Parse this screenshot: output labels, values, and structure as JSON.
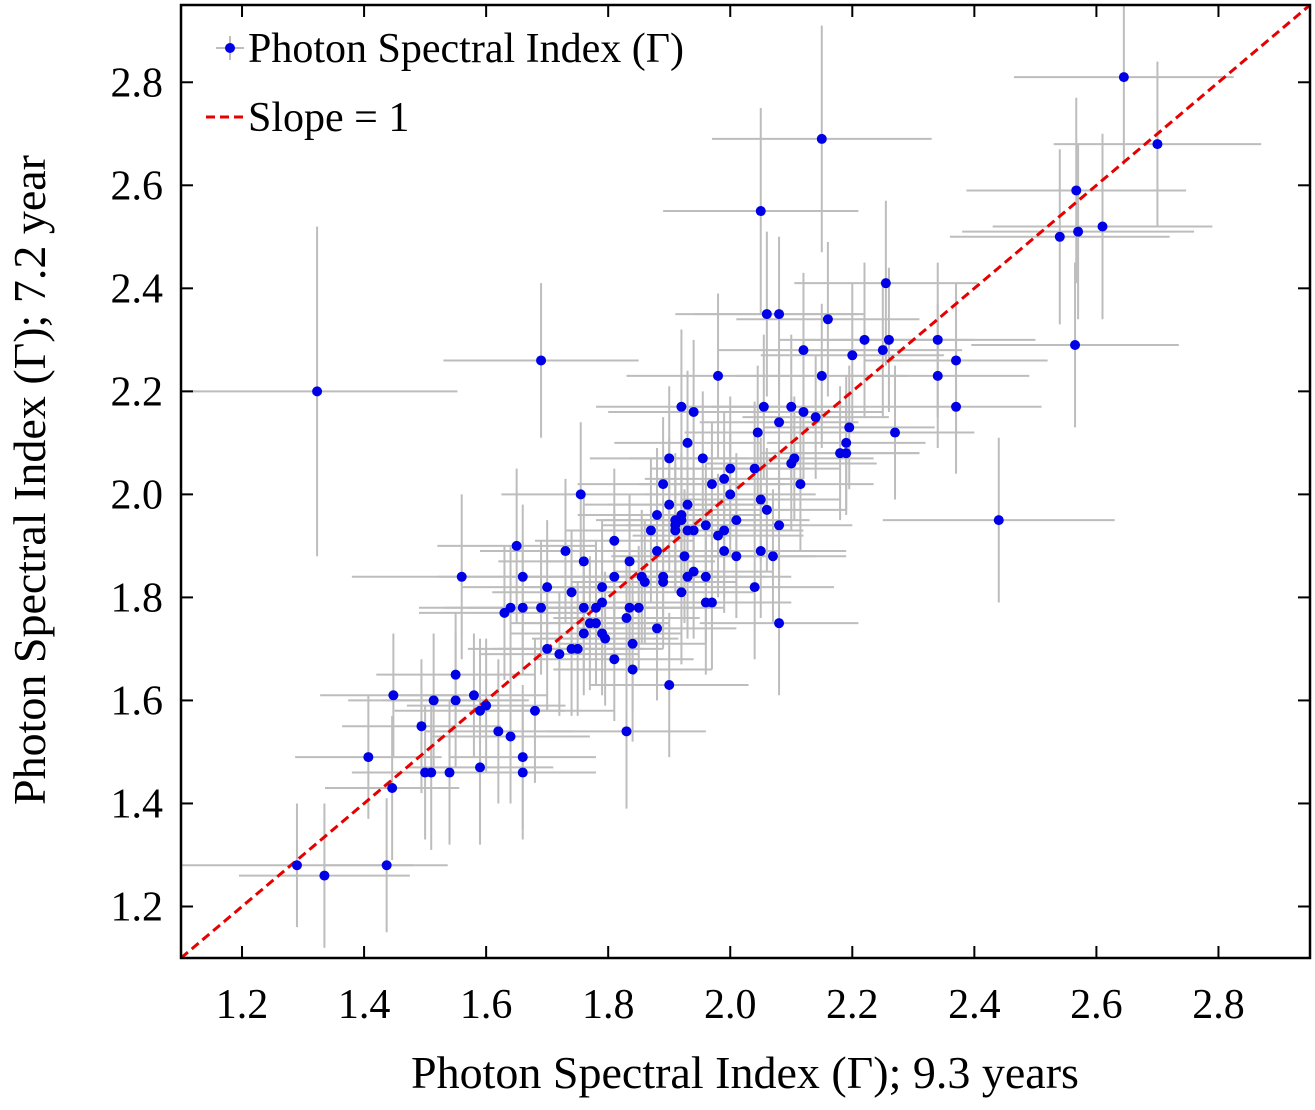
{
  "chart_data": {
    "type": "scatter",
    "xlabel": "Photon Spectral Index (Γ); 9.3 years",
    "ylabel": "Photon Spectral Index (Γ); 7.2 year",
    "xlim": [
      1.1,
      2.95
    ],
    "ylim": [
      1.1,
      2.95
    ],
    "xticks": [
      "1.2",
      "1.4",
      "1.6",
      "1.8",
      "2.0",
      "2.2",
      "2.4",
      "2.6",
      "2.8"
    ],
    "yticks": [
      "1.2",
      "1.4",
      "1.6",
      "1.8",
      "2.0",
      "2.2",
      "2.4",
      "2.6",
      "2.8"
    ],
    "grid": false,
    "legend_position": "top-left",
    "colors": {
      "points": "#0000e6",
      "errorbars": "#bdbdbd",
      "slope_line": "#e60000"
    },
    "series": [
      {
        "name": "Photon Spectral Index (Γ)",
        "type": "scatter-errorbar",
        "point_format": [
          "x",
          "y",
          "xerr",
          "yerr"
        ],
        "points": [
          [
            1.29,
            1.28,
            0.19,
            0.12
          ],
          [
            1.335,
            1.26,
            0.14,
            0.14
          ],
          [
            1.437,
            1.28,
            0.1,
            0.13
          ],
          [
            1.323,
            2.2,
            0.23,
            0.32
          ],
          [
            1.407,
            1.49,
            0.12,
            0.12
          ],
          [
            1.446,
            1.43,
            0.11,
            0.14
          ],
          [
            1.448,
            1.61,
            0.12,
            0.12
          ],
          [
            1.494,
            1.55,
            0.13,
            0.13
          ],
          [
            1.5,
            1.46,
            0.12,
            0.13
          ],
          [
            1.51,
            1.46,
            0.12,
            0.15
          ],
          [
            1.514,
            1.6,
            0.14,
            0.13
          ],
          [
            1.54,
            1.46,
            0.13,
            0.14
          ],
          [
            1.55,
            1.65,
            0.13,
            0.12
          ],
          [
            1.55,
            1.6,
            0.12,
            0.13
          ],
          [
            1.56,
            1.84,
            0.18,
            0.16
          ],
          [
            1.58,
            1.61,
            0.12,
            0.12
          ],
          [
            1.59,
            1.58,
            0.14,
            0.14
          ],
          [
            1.59,
            1.47,
            0.12,
            0.15
          ],
          [
            1.6,
            1.59,
            0.13,
            0.13
          ],
          [
            1.62,
            1.54,
            0.12,
            0.14
          ],
          [
            1.64,
            1.53,
            0.13,
            0.13
          ],
          [
            1.63,
            1.77,
            0.14,
            0.13
          ],
          [
            1.64,
            1.78,
            0.15,
            0.12
          ],
          [
            1.65,
            1.9,
            0.13,
            0.15
          ],
          [
            1.66,
            1.49,
            0.12,
            0.14
          ],
          [
            1.66,
            1.78,
            0.13,
            0.13
          ],
          [
            1.66,
            1.84,
            0.14,
            0.14
          ],
          [
            1.66,
            1.46,
            0.12,
            0.13
          ],
          [
            1.68,
            1.58,
            0.13,
            0.14
          ],
          [
            1.69,
            1.78,
            0.12,
            0.13
          ],
          [
            1.69,
            2.26,
            0.16,
            0.15
          ],
          [
            1.7,
            1.7,
            0.13,
            0.12
          ],
          [
            1.7,
            1.82,
            0.14,
            0.13
          ],
          [
            1.72,
            1.69,
            0.13,
            0.12
          ],
          [
            1.73,
            1.89,
            0.14,
            0.14
          ],
          [
            1.74,
            1.7,
            0.12,
            0.13
          ],
          [
            1.74,
            1.81,
            0.13,
            0.12
          ],
          [
            1.75,
            1.7,
            0.14,
            0.13
          ],
          [
            1.755,
            2.0,
            0.13,
            0.14
          ],
          [
            1.76,
            1.87,
            0.14,
            0.13
          ],
          [
            1.76,
            1.78,
            0.13,
            0.12
          ],
          [
            1.76,
            1.73,
            0.12,
            0.12
          ],
          [
            1.77,
            1.75,
            0.13,
            0.13
          ],
          [
            1.78,
            1.75,
            0.12,
            0.12
          ],
          [
            1.78,
            1.78,
            0.14,
            0.13
          ],
          [
            1.79,
            1.79,
            0.13,
            0.12
          ],
          [
            1.79,
            1.82,
            0.12,
            0.13
          ],
          [
            1.79,
            1.73,
            0.13,
            0.12
          ],
          [
            1.795,
            1.72,
            0.12,
            0.13
          ],
          [
            1.81,
            1.68,
            0.13,
            0.12
          ],
          [
            1.81,
            1.84,
            0.14,
            0.13
          ],
          [
            1.81,
            1.91,
            0.13,
            0.14
          ],
          [
            1.83,
            1.76,
            0.12,
            0.12
          ],
          [
            1.83,
            1.54,
            0.13,
            0.15
          ],
          [
            1.835,
            1.87,
            0.14,
            0.13
          ],
          [
            1.835,
            1.78,
            0.13,
            0.12
          ],
          [
            1.84,
            1.71,
            0.12,
            0.13
          ],
          [
            1.84,
            1.66,
            0.13,
            0.14
          ],
          [
            1.85,
            1.78,
            0.14,
            0.12
          ],
          [
            1.855,
            1.84,
            0.13,
            0.13
          ],
          [
            1.86,
            1.83,
            0.12,
            0.12
          ],
          [
            1.87,
            1.93,
            0.14,
            0.14
          ],
          [
            1.88,
            1.96,
            0.13,
            0.13
          ],
          [
            1.88,
            1.89,
            0.12,
            0.12
          ],
          [
            1.88,
            1.74,
            0.13,
            0.14
          ],
          [
            1.89,
            2.02,
            0.14,
            0.13
          ],
          [
            1.89,
            1.84,
            0.13,
            0.12
          ],
          [
            1.89,
            1.83,
            0.12,
            0.13
          ],
          [
            1.9,
            1.63,
            0.13,
            0.14
          ],
          [
            1.9,
            1.98,
            0.14,
            0.13
          ],
          [
            1.9,
            2.07,
            0.13,
            0.14
          ],
          [
            1.91,
            1.94,
            0.12,
            0.12
          ],
          [
            1.91,
            1.95,
            0.13,
            0.13
          ],
          [
            1.91,
            1.93,
            0.14,
            0.12
          ],
          [
            1.92,
            1.95,
            0.13,
            0.13
          ],
          [
            1.92,
            1.81,
            0.12,
            0.14
          ],
          [
            1.92,
            2.17,
            0.14,
            0.15
          ],
          [
            1.92,
            1.96,
            0.13,
            0.12
          ],
          [
            1.925,
            1.88,
            0.12,
            0.13
          ],
          [
            1.93,
            1.98,
            0.13,
            0.12
          ],
          [
            1.93,
            1.93,
            0.14,
            0.13
          ],
          [
            1.93,
            1.84,
            0.13,
            0.12
          ],
          [
            1.93,
            2.1,
            0.12,
            0.14
          ],
          [
            1.94,
            1.85,
            0.13,
            0.13
          ],
          [
            1.94,
            2.16,
            0.14,
            0.14
          ],
          [
            1.94,
            1.93,
            0.13,
            0.12
          ],
          [
            1.955,
            2.07,
            0.12,
            0.13
          ],
          [
            1.96,
            1.94,
            0.13,
            0.12
          ],
          [
            1.96,
            1.84,
            0.14,
            0.13
          ],
          [
            1.96,
            1.79,
            0.13,
            0.14
          ],
          [
            1.97,
            2.02,
            0.12,
            0.12
          ],
          [
            1.97,
            1.79,
            0.13,
            0.13
          ],
          [
            1.98,
            1.92,
            0.14,
            0.12
          ],
          [
            1.98,
            2.23,
            0.15,
            0.16
          ],
          [
            1.99,
            2.03,
            0.13,
            0.13
          ],
          [
            1.99,
            1.89,
            0.12,
            0.12
          ],
          [
            1.99,
            1.93,
            0.13,
            0.13
          ],
          [
            2.0,
            2.0,
            0.14,
            0.12
          ],
          [
            2.0,
            2.05,
            0.13,
            0.14
          ],
          [
            2.01,
            1.95,
            0.12,
            0.13
          ],
          [
            2.01,
            1.88,
            0.13,
            0.12
          ],
          [
            2.04,
            2.05,
            0.14,
            0.13
          ],
          [
            2.04,
            1.82,
            0.13,
            0.14
          ],
          [
            2.045,
            2.12,
            0.12,
            0.13
          ],
          [
            2.05,
            1.99,
            0.13,
            0.12
          ],
          [
            2.05,
            1.89,
            0.14,
            0.13
          ],
          [
            2.05,
            2.55,
            0.16,
            0.2
          ],
          [
            2.055,
            2.17,
            0.13,
            0.14
          ],
          [
            2.06,
            2.35,
            0.15,
            0.16
          ],
          [
            2.06,
            1.97,
            0.13,
            0.12
          ],
          [
            2.07,
            1.88,
            0.12,
            0.13
          ],
          [
            2.08,
            1.75,
            0.13,
            0.14
          ],
          [
            2.08,
            2.35,
            0.14,
            0.15
          ],
          [
            2.08,
            2.14,
            0.13,
            0.13
          ],
          [
            2.08,
            1.94,
            0.12,
            0.12
          ],
          [
            2.1,
            2.17,
            0.13,
            0.14
          ],
          [
            2.1,
            2.06,
            0.14,
            0.13
          ],
          [
            2.105,
            2.07,
            0.13,
            0.12
          ],
          [
            2.115,
            2.02,
            0.12,
            0.13
          ],
          [
            2.12,
            2.28,
            0.14,
            0.15
          ],
          [
            2.12,
            2.16,
            0.13,
            0.13
          ],
          [
            2.14,
            2.15,
            0.12,
            0.12
          ],
          [
            2.15,
            2.23,
            0.14,
            0.14
          ],
          [
            2.15,
            2.69,
            0.18,
            0.22
          ],
          [
            2.16,
            2.34,
            0.15,
            0.15
          ],
          [
            2.18,
            2.08,
            0.13,
            0.13
          ],
          [
            2.19,
            2.08,
            0.12,
            0.12
          ],
          [
            2.19,
            2.1,
            0.13,
            0.13
          ],
          [
            2.195,
            2.13,
            0.14,
            0.12
          ],
          [
            2.2,
            2.27,
            0.15,
            0.14
          ],
          [
            2.22,
            2.3,
            0.14,
            0.15
          ],
          [
            2.25,
            2.28,
            0.13,
            0.13
          ],
          [
            2.255,
            2.41,
            0.15,
            0.16
          ],
          [
            2.26,
            2.3,
            0.14,
            0.14
          ],
          [
            2.27,
            2.12,
            0.13,
            0.13
          ],
          [
            2.34,
            2.3,
            0.16,
            0.15
          ],
          [
            2.34,
            2.23,
            0.15,
            0.14
          ],
          [
            2.37,
            2.17,
            0.14,
            0.13
          ],
          [
            2.37,
            2.26,
            0.15,
            0.15
          ],
          [
            2.44,
            1.95,
            0.19,
            0.16
          ],
          [
            2.54,
            2.5,
            0.18,
            0.17
          ],
          [
            2.565,
            2.29,
            0.17,
            0.16
          ],
          [
            2.567,
            2.59,
            0.18,
            0.18
          ],
          [
            2.57,
            2.51,
            0.19,
            0.17
          ],
          [
            2.61,
            2.52,
            0.18,
            0.18
          ],
          [
            2.645,
            2.81,
            0.18,
            0.17
          ],
          [
            2.7,
            2.68,
            0.17,
            0.16
          ]
        ]
      },
      {
        "name": "Slope = 1",
        "type": "line",
        "style": "dashed",
        "x": [
          1.1,
          2.95
        ],
        "y": [
          1.1,
          2.95
        ]
      }
    ]
  }
}
